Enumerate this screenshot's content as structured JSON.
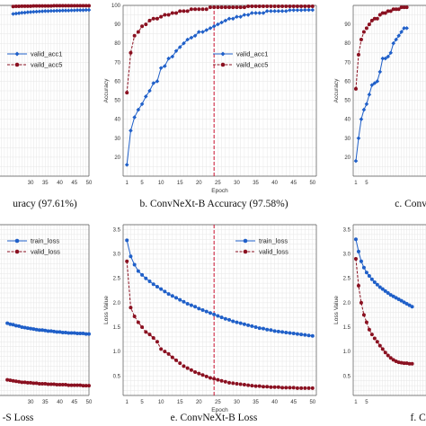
{
  "colors": {
    "blue": "#1f5fc8",
    "red": "#8a1020",
    "grid": "#e6e6e6",
    "refline": "#c8102e"
  },
  "chart_data": [
    {
      "id": "acc-left",
      "type": "line",
      "caption": "uracy (97.61%)",
      "xlabel": "",
      "ylabel": "",
      "xlim": [
        1,
        50
      ],
      "ylim": [
        10,
        100
      ],
      "xticks": [
        "30",
        "35",
        "40",
        "45",
        "50"
      ],
      "xtick_values": [
        30,
        35,
        40,
        45,
        50
      ],
      "yticks": [],
      "grid": true,
      "legend_position": "upper-left",
      "series": [
        {
          "name": "valid_acc1",
          "color": "blue",
          "marker": "diamond",
          "x": [
            24,
            25,
            26,
            27,
            28,
            29,
            30,
            31,
            32,
            33,
            34,
            35,
            36,
            37,
            38,
            39,
            40,
            41,
            42,
            43,
            44,
            45,
            46,
            47,
            48,
            49,
            50
          ],
          "y": [
            95.5,
            95.7,
            95.9,
            96.1,
            96.2,
            96.4,
            96.5,
            96.6,
            96.7,
            96.8,
            96.9,
            97.0,
            97.0,
            97.1,
            97.1,
            97.2,
            97.2,
            97.3,
            97.3,
            97.3,
            97.4,
            97.4,
            97.5,
            97.5,
            97.5,
            97.6,
            97.6
          ]
        },
        {
          "name": "vaild_acc5",
          "color": "red",
          "marker": "circle",
          "x": [
            24,
            25,
            26,
            27,
            28,
            29,
            30,
            31,
            32,
            33,
            34,
            35,
            36,
            37,
            38,
            39,
            40,
            41,
            42,
            43,
            44,
            45,
            46,
            47,
            48,
            49,
            50
          ],
          "y": [
            99.4,
            99.5,
            99.5,
            99.6,
            99.6,
            99.6,
            99.6,
            99.7,
            99.7,
            99.7,
            99.7,
            99.7,
            99.7,
            99.7,
            99.8,
            99.8,
            99.8,
            99.8,
            99.8,
            99.8,
            99.8,
            99.8,
            99.8,
            99.8,
            99.8,
            99.8,
            99.8
          ]
        }
      ]
    },
    {
      "id": "acc-mid",
      "type": "line",
      "caption": "b. ConvNeXt-B Accuracy (97.58%)",
      "xlabel": "Epoch",
      "ylabel": "Accuracy",
      "xlim": [
        0,
        51
      ],
      "ylim": [
        10,
        100
      ],
      "xticks": [
        "1",
        "5",
        "10",
        "15",
        "20",
        "25",
        "30",
        "35",
        "40",
        "45",
        "50"
      ],
      "xtick_values": [
        1,
        5,
        10,
        15,
        20,
        25,
        30,
        35,
        40,
        45,
        50
      ],
      "yticks": [
        "20",
        "30",
        "40",
        "50",
        "60",
        "70",
        "80",
        "90",
        "100"
      ],
      "ytick_values": [
        20,
        30,
        40,
        50,
        60,
        70,
        80,
        90,
        100
      ],
      "grid": true,
      "legend_position": "right",
      "vline_x": 24,
      "series": [
        {
          "name": "valid_acc1",
          "color": "blue",
          "marker": "diamond",
          "x": [
            1,
            2,
            3,
            4,
            5,
            6,
            7,
            8,
            9,
            10,
            11,
            12,
            13,
            14,
            15,
            16,
            17,
            18,
            19,
            20,
            21,
            22,
            23,
            24,
            25,
            26,
            27,
            28,
            29,
            30,
            31,
            32,
            33,
            34,
            35,
            36,
            37,
            38,
            39,
            40,
            41,
            42,
            43,
            44,
            45,
            46,
            47,
            48,
            49,
            50
          ],
          "y": [
            16,
            34,
            41,
            45,
            48,
            52,
            55,
            59,
            60,
            67,
            68,
            72,
            73,
            76,
            78,
            80,
            82,
            83,
            84,
            86,
            86,
            87,
            88,
            89,
            90,
            91,
            92,
            93,
            93,
            94,
            94,
            95,
            95,
            96,
            96,
            96,
            96,
            97,
            97,
            97,
            97,
            97,
            97,
            97.5,
            97.5,
            97.5,
            97.5,
            97.6,
            97.6,
            97.6
          ]
        },
        {
          "name": "vaild_acc5",
          "color": "red",
          "marker": "circle",
          "x": [
            1,
            2,
            3,
            4,
            5,
            6,
            7,
            8,
            9,
            10,
            11,
            12,
            13,
            14,
            15,
            16,
            17,
            18,
            19,
            20,
            21,
            22,
            23,
            24,
            25,
            26,
            27,
            28,
            29,
            30,
            31,
            32,
            33,
            34,
            35,
            36,
            37,
            38,
            39,
            40,
            41,
            42,
            43,
            44,
            45,
            46,
            47,
            48,
            49,
            50
          ],
          "y": [
            54,
            75,
            84,
            86,
            89,
            90,
            92,
            93,
            93,
            94,
            95,
            95,
            96,
            96,
            97,
            97,
            97,
            98,
            98,
            98,
            98,
            98,
            99,
            99,
            99,
            99,
            99,
            99,
            99,
            99,
            99,
            99,
            99.5,
            99.5,
            99.5,
            99.5,
            99.5,
            99.5,
            99.5,
            99.5,
            99.5,
            99.5,
            99.5,
            99.5,
            99.5,
            99.5,
            99.5,
            99.5,
            99.5,
            99.5
          ]
        }
      ]
    },
    {
      "id": "acc-right",
      "type": "line",
      "caption": "c. ConvNeX",
      "xlabel": "",
      "ylabel": "Accuracy",
      "xlim": [
        0,
        51
      ],
      "ylim": [
        10,
        100
      ],
      "xticks": [
        "1",
        "5"
      ],
      "xtick_values": [
        1,
        5
      ],
      "yticks": [
        "20",
        "30",
        "40",
        "50",
        "60",
        "70",
        "80",
        "90"
      ],
      "ytick_values": [
        20,
        30,
        40,
        50,
        60,
        70,
        80,
        90
      ],
      "grid": true,
      "series": [
        {
          "name": "",
          "color": "blue",
          "marker": "diamond",
          "x": [
            1,
            2,
            3,
            4,
            5,
            6,
            7,
            8,
            9,
            10,
            11,
            12,
            13,
            14,
            15,
            16,
            17,
            18,
            19,
            20
          ],
          "y": [
            18,
            30,
            40,
            45,
            48,
            53,
            58,
            59,
            60,
            65,
            72,
            72,
            73,
            75,
            80,
            82,
            84,
            86,
            88,
            88
          ]
        },
        {
          "name": "",
          "color": "red",
          "marker": "circle",
          "x": [
            1,
            2,
            3,
            4,
            5,
            6,
            7,
            8,
            9,
            10,
            11,
            12,
            13,
            14,
            15,
            16,
            17,
            18,
            19,
            20
          ],
          "y": [
            56,
            74,
            82,
            86,
            88,
            90,
            92,
            93,
            93,
            95,
            96,
            96,
            97,
            97,
            98,
            98,
            98,
            99,
            99,
            99
          ]
        }
      ]
    },
    {
      "id": "loss-left",
      "type": "line",
      "caption": "-S Loss",
      "xlabel": "",
      "ylabel": "",
      "xlim": [
        1,
        50
      ],
      "ylim": [
        0.1,
        3.6
      ],
      "xticks": [
        "30",
        "35",
        "40",
        "45",
        "50"
      ],
      "xtick_values": [
        30,
        35,
        40,
        45,
        50
      ],
      "yticks": [],
      "grid": true,
      "legend_position": "upper-left",
      "series": [
        {
          "name": "train_loss",
          "color": "blue",
          "marker": "circle",
          "x": [
            22,
            23,
            24,
            25,
            26,
            27,
            28,
            29,
            30,
            31,
            32,
            33,
            34,
            35,
            36,
            37,
            38,
            39,
            40,
            41,
            42,
            43,
            44,
            45,
            46,
            47,
            48,
            49,
            50
          ],
          "y": [
            1.58,
            1.56,
            1.55,
            1.53,
            1.52,
            1.5,
            1.49,
            1.48,
            1.47,
            1.46,
            1.45,
            1.44,
            1.44,
            1.43,
            1.42,
            1.42,
            1.41,
            1.4,
            1.4,
            1.39,
            1.39,
            1.38,
            1.38,
            1.38,
            1.37,
            1.37,
            1.37,
            1.36,
            1.36
          ]
        },
        {
          "name": "valid_loss",
          "color": "red",
          "marker": "circle",
          "x": [
            22,
            23,
            24,
            25,
            26,
            27,
            28,
            29,
            30,
            31,
            32,
            33,
            34,
            35,
            36,
            37,
            38,
            39,
            40,
            41,
            42,
            43,
            44,
            45,
            46,
            47,
            48,
            49,
            50
          ],
          "y": [
            0.42,
            0.41,
            0.4,
            0.39,
            0.38,
            0.37,
            0.37,
            0.36,
            0.36,
            0.35,
            0.35,
            0.34,
            0.34,
            0.34,
            0.33,
            0.33,
            0.33,
            0.32,
            0.32,
            0.32,
            0.32,
            0.31,
            0.31,
            0.31,
            0.31,
            0.31,
            0.3,
            0.3,
            0.3
          ]
        }
      ]
    },
    {
      "id": "loss-mid",
      "type": "line",
      "caption": "e. ConvNeXt-B Loss",
      "xlabel": "Epoch",
      "ylabel": "Loss Value",
      "xlim": [
        0,
        51
      ],
      "ylim": [
        0.1,
        3.6
      ],
      "xticks": [
        "1",
        "5",
        "10",
        "15",
        "20",
        "25",
        "30",
        "35",
        "40",
        "45",
        "50"
      ],
      "xtick_values": [
        1,
        5,
        10,
        15,
        20,
        25,
        30,
        35,
        40,
        45,
        50
      ],
      "yticks": [
        "0.5",
        "1.0",
        "1.5",
        "2.0",
        "2.5",
        "3.0",
        "3.5"
      ],
      "ytick_values": [
        0.5,
        1.0,
        1.5,
        2.0,
        2.5,
        3.0,
        3.5
      ],
      "grid": true,
      "legend_position": "upper-right",
      "vline_x": 24,
      "series": [
        {
          "name": "train_loss",
          "color": "blue",
          "marker": "circle",
          "x": [
            1,
            2,
            3,
            4,
            5,
            6,
            7,
            8,
            9,
            10,
            11,
            12,
            13,
            14,
            15,
            16,
            17,
            18,
            19,
            20,
            21,
            22,
            23,
            24,
            25,
            26,
            27,
            28,
            29,
            30,
            31,
            32,
            33,
            34,
            35,
            36,
            37,
            38,
            39,
            40,
            41,
            42,
            43,
            44,
            45,
            46,
            47,
            48,
            49,
            50
          ],
          "y": [
            3.28,
            2.95,
            2.78,
            2.65,
            2.57,
            2.5,
            2.44,
            2.38,
            2.33,
            2.28,
            2.23,
            2.18,
            2.14,
            2.1,
            2.06,
            2.02,
            1.98,
            1.95,
            1.92,
            1.88,
            1.85,
            1.82,
            1.79,
            1.76,
            1.73,
            1.7,
            1.67,
            1.65,
            1.62,
            1.6,
            1.58,
            1.56,
            1.54,
            1.52,
            1.5,
            1.48,
            1.47,
            1.45,
            1.44,
            1.42,
            1.41,
            1.4,
            1.39,
            1.38,
            1.37,
            1.36,
            1.35,
            1.34,
            1.33,
            1.32
          ]
        },
        {
          "name": "valid_loss",
          "color": "red",
          "marker": "circle",
          "x": [
            1,
            2,
            3,
            4,
            5,
            6,
            7,
            8,
            9,
            10,
            11,
            12,
            13,
            14,
            15,
            16,
            17,
            18,
            19,
            20,
            21,
            22,
            23,
            24,
            25,
            26,
            27,
            28,
            29,
            30,
            31,
            32,
            33,
            34,
            35,
            36,
            37,
            38,
            39,
            40,
            41,
            42,
            43,
            44,
            45,
            46,
            47,
            48,
            49,
            50
          ],
          "y": [
            2.85,
            1.9,
            1.72,
            1.6,
            1.5,
            1.4,
            1.35,
            1.28,
            1.2,
            1.05,
            1.0,
            0.95,
            0.88,
            0.82,
            0.76,
            0.7,
            0.66,
            0.62,
            0.58,
            0.55,
            0.52,
            0.49,
            0.46,
            0.44,
            0.42,
            0.4,
            0.38,
            0.36,
            0.35,
            0.34,
            0.33,
            0.32,
            0.31,
            0.3,
            0.29,
            0.29,
            0.28,
            0.28,
            0.27,
            0.27,
            0.27,
            0.26,
            0.26,
            0.26,
            0.26,
            0.25,
            0.25,
            0.25,
            0.25,
            0.25
          ]
        }
      ]
    },
    {
      "id": "loss-right",
      "type": "line",
      "caption": "f. Co",
      "xlabel": "",
      "ylabel": "Loss Value",
      "xlim": [
        0,
        51
      ],
      "ylim": [
        0.1,
        3.6
      ],
      "xticks": [
        "1",
        "5"
      ],
      "xtick_values": [
        1,
        5
      ],
      "yticks": [
        "0.5",
        "1.0",
        "1.5",
        "2.0",
        "2.5",
        "3.0",
        "3.5"
      ],
      "ytick_values": [
        0.5,
        1.0,
        1.5,
        2.0,
        2.5,
        3.0,
        3.5
      ],
      "grid": true,
      "series": [
        {
          "name": "",
          "color": "blue",
          "marker": "circle",
          "x": [
            1,
            2,
            3,
            4,
            5,
            6,
            7,
            8,
            9,
            10,
            11,
            12,
            13,
            14,
            15,
            16,
            17,
            18,
            19,
            20,
            21,
            22
          ],
          "y": [
            3.3,
            3.05,
            2.85,
            2.72,
            2.62,
            2.55,
            2.48,
            2.42,
            2.37,
            2.32,
            2.28,
            2.24,
            2.2,
            2.16,
            2.13,
            2.1,
            2.07,
            2.04,
            2.01,
            1.98,
            1.95,
            1.92
          ]
        },
        {
          "name": "",
          "color": "red",
          "marker": "circle",
          "x": [
            1,
            2,
            3,
            4,
            5,
            6,
            7,
            8,
            9,
            10,
            11,
            12,
            13,
            14,
            15,
            16,
            17,
            18,
            19,
            20,
            21,
            22
          ],
          "y": [
            2.9,
            2.35,
            2.0,
            1.75,
            1.6,
            1.45,
            1.35,
            1.27,
            1.2,
            1.12,
            1.05,
            0.98,
            0.92,
            0.87,
            0.83,
            0.8,
            0.78,
            0.77,
            0.76,
            0.76,
            0.75,
            0.75
          ]
        }
      ]
    }
  ]
}
